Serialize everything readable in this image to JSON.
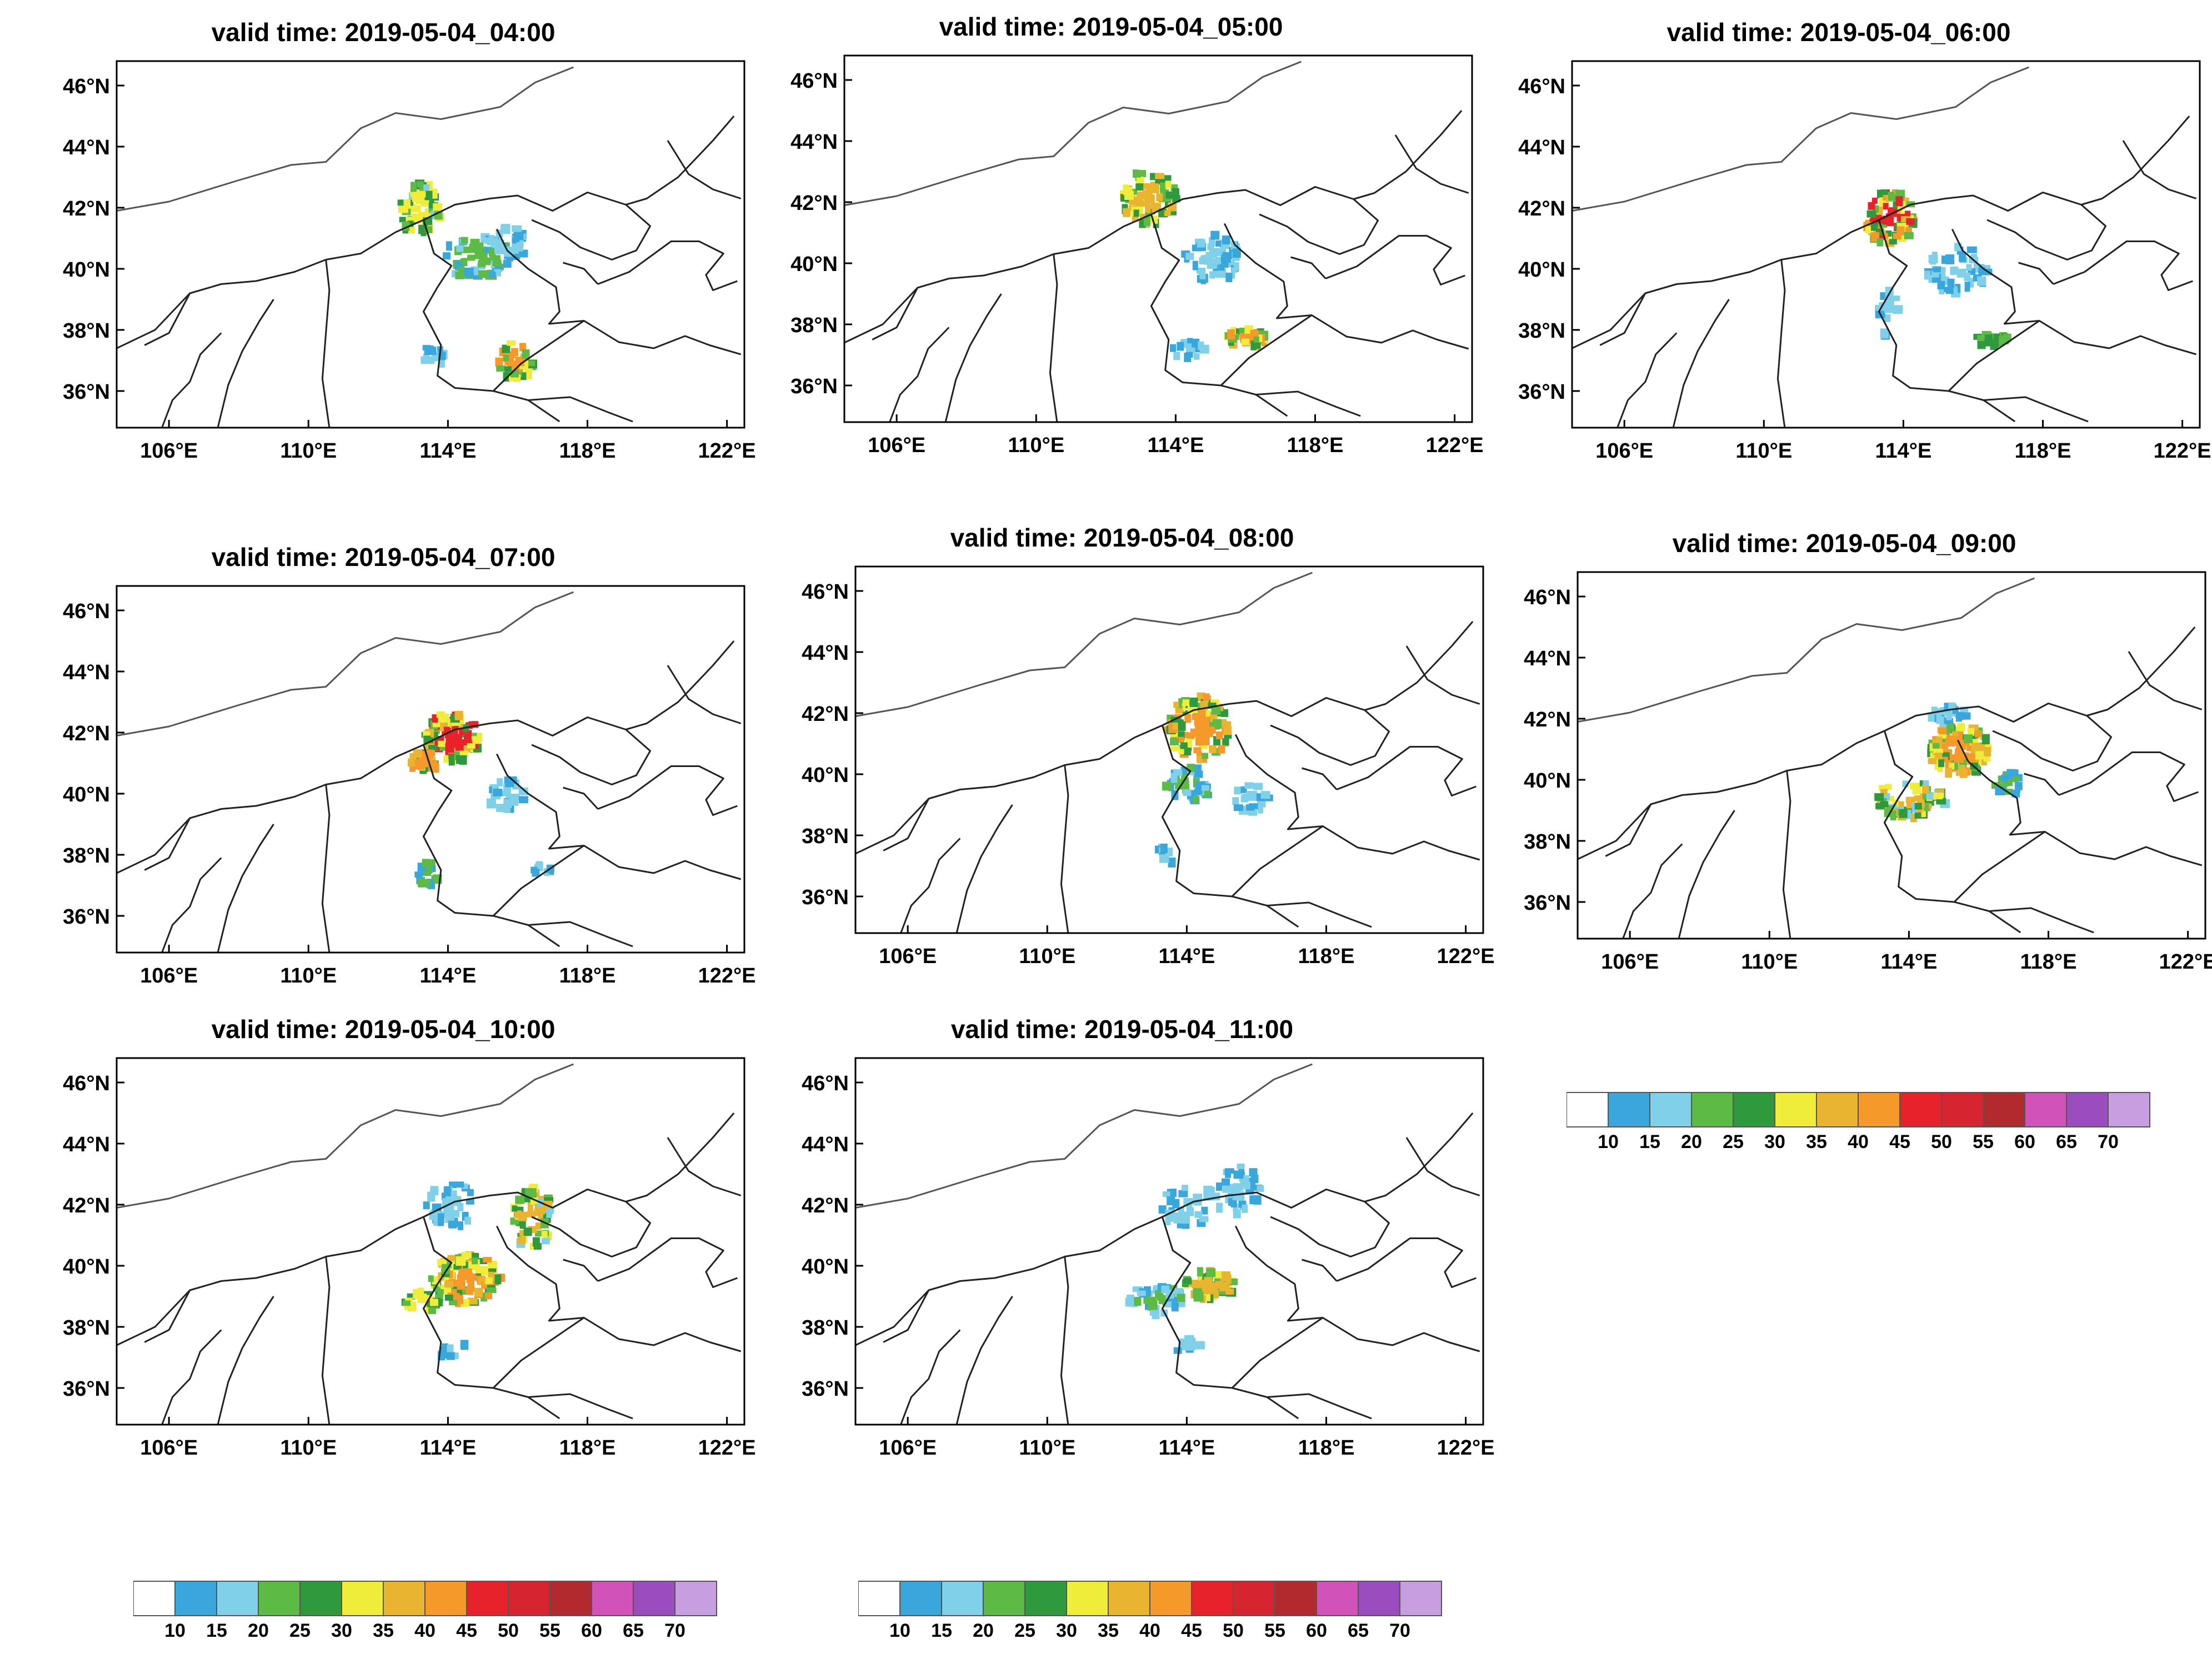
{
  "figure": {
    "panels": [
      {
        "id": "p1",
        "title": "valid time: 2019-05-04_04:00"
      },
      {
        "id": "p2",
        "title": "valid time: 2019-05-04_05:00"
      },
      {
        "id": "p3",
        "title": "valid time: 2019-05-04_06:00"
      },
      {
        "id": "p4",
        "title": "valid time: 2019-05-04_07:00"
      },
      {
        "id": "p5",
        "title": "valid time: 2019-05-04_08:00"
      },
      {
        "id": "p6",
        "title": "valid time: 2019-05-04_09:00"
      },
      {
        "id": "p7",
        "title": "valid time: 2019-05-04_10:00"
      },
      {
        "id": "p8",
        "title": "valid time: 2019-05-04_11:00"
      }
    ],
    "axes": {
      "lat_ticks": [
        "36°N",
        "38°N",
        "40°N",
        "42°N",
        "44°N",
        "46°N"
      ],
      "lat_values": [
        36,
        38,
        40,
        42,
        44,
        46
      ],
      "lon_ticks": [
        "106°E",
        "110°E",
        "114°E",
        "118°E",
        "122°E"
      ],
      "lon_values": [
        106,
        110,
        114,
        118,
        122
      ],
      "lon_range": [
        104.5,
        122.5
      ],
      "lat_range": [
        34.8,
        46.8
      ]
    },
    "colorbar": {
      "labels": [
        "10",
        "15",
        "20",
        "25",
        "30",
        "35",
        "40",
        "45",
        "50",
        "55",
        "60",
        "65",
        "70"
      ],
      "colors": [
        "#ffffff",
        "#3aa7dc",
        "#7fd0e8",
        "#5dbb45",
        "#2e9a3d",
        "#f0ec3a",
        "#e9b530",
        "#f59a2a",
        "#e8222a",
        "#d62430",
        "#b02a2e",
        "#d152b8",
        "#9b4dbf",
        "#c79ee0"
      ]
    }
  }
}
